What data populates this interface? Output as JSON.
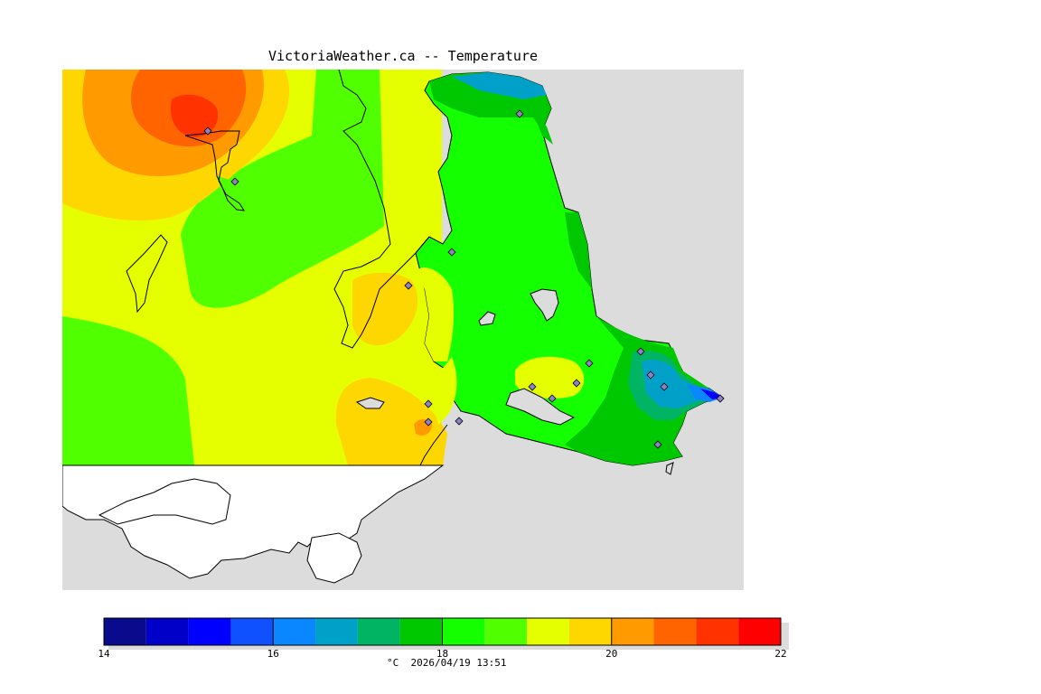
{
  "header": {
    "title": "VictoriaWeather.ca -- Temperature"
  },
  "map": {
    "land_colors": {
      "background_land": "#44ff00",
      "water": "#dcdcdc",
      "us_land": "#ffffff"
    },
    "station_marker": "diamond"
  },
  "legend": {
    "min": 14,
    "max": 22,
    "step": 0.5,
    "colors": [
      "#0a0a8c",
      "#0000c8",
      "#0000ff",
      "#0f50ff",
      "#0a87ff",
      "#00a0c8",
      "#00b464",
      "#00c800",
      "#14ff00",
      "#50ff00",
      "#e6ff00",
      "#ffd700",
      "#ff9b00",
      "#ff6400",
      "#ff3200",
      "#ff0000"
    ],
    "tick_labels": [
      "14",
      "16",
      "18",
      "20",
      "22"
    ],
    "unit": "°C",
    "timestamp": "2026/04/19 13:51"
  }
}
